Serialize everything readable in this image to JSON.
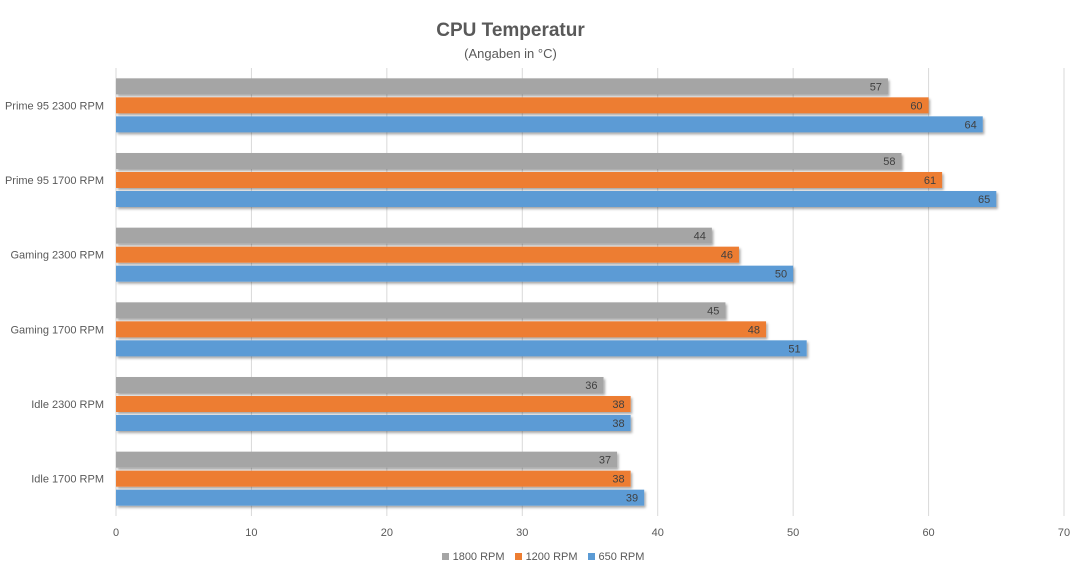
{
  "chart_data": {
    "type": "bar",
    "orientation": "horizontal",
    "title": "CPU Temperatur",
    "subtitle": "(Angaben in °C)",
    "xlabel": "",
    "ylabel": "",
    "xlim": [
      0,
      70
    ],
    "x_ticks": [
      0,
      10,
      20,
      30,
      40,
      50,
      60,
      70
    ],
    "grid": true,
    "legend_position": "bottom",
    "categories": [
      "Prime 95 2300 RPM",
      "Prime 95 1700 RPM",
      "Gaming 2300 RPM",
      "Gaming 1700 RPM",
      "Idle 2300 RPM",
      "Idle 1700 RPM"
    ],
    "series": [
      {
        "name": "1800 RPM",
        "color": "#a5a5a5",
        "values": [
          57,
          58,
          44,
          45,
          36,
          37
        ]
      },
      {
        "name": "1200 RPM",
        "color": "#ed7d31",
        "values": [
          60,
          61,
          46,
          48,
          38,
          38
        ]
      },
      {
        "name": "650 RPM",
        "color": "#5b9bd5",
        "values": [
          64,
          65,
          50,
          51,
          38,
          39
        ]
      }
    ]
  }
}
